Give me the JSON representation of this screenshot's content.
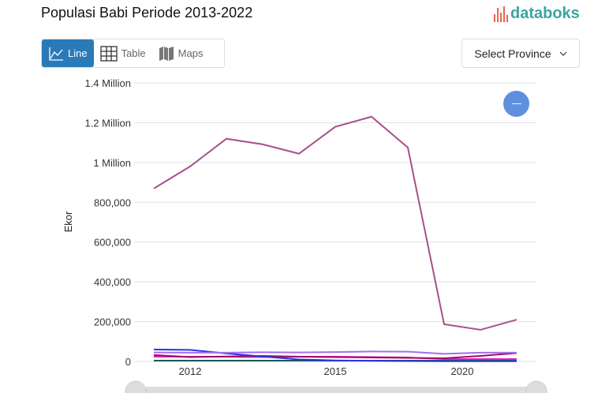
{
  "header": {
    "title": "Populasi Babi Periode 2013-2022",
    "logo": "databoks"
  },
  "tabs": [
    {
      "label": "Line",
      "icon": "line-chart-icon",
      "active": true
    },
    {
      "label": "Table",
      "icon": "table-icon"
    },
    {
      "label": "Maps",
      "icon": "map-icon"
    }
  ],
  "province_select": {
    "label": "Select Province"
  },
  "chart_data": {
    "type": "line",
    "title": "",
    "ylabel": "Ekor",
    "ylim": [
      0,
      1400000
    ],
    "yticks": [
      {
        "v": 0,
        "label": "0"
      },
      {
        "v": 200000,
        "label": "200,000"
      },
      {
        "v": 400000,
        "label": "400,000"
      },
      {
        "v": 600000,
        "label": "600,000"
      },
      {
        "v": 800000,
        "label": "800,000"
      },
      {
        "v": 1000000,
        "label": "1 Million"
      },
      {
        "v": 1200000,
        "label": "1.2 Million"
      },
      {
        "v": 1400000,
        "label": "1.4 Million"
      }
    ],
    "xticks": [
      {
        "v": 1,
        "label": "2012"
      },
      {
        "v": 5,
        "label": "2015"
      },
      {
        "v": 8.5,
        "label": "2020"
      }
    ],
    "grid": true,
    "series": [
      {
        "color": "#a8508a",
        "values": [
          869000,
          980000,
          1119000,
          1091000,
          1044000,
          1179000,
          1230000,
          1075000,
          187000,
          159000,
          210000
        ]
      },
      {
        "color": "#a070f0",
        "values": [
          45000,
          44000,
          44000,
          46000,
          45000,
          47000,
          50000,
          49000,
          38000,
          44000,
          44000
        ]
      },
      {
        "color": "#3030e8",
        "values": [
          60000,
          58000,
          40000,
          25000,
          10000,
          5000,
          3000,
          2000,
          1000,
          1000,
          1000
        ]
      },
      {
        "color": "#9a1060",
        "values": [
          32000,
          22000,
          25000,
          28000,
          24000,
          22000,
          20000,
          18000,
          16000,
          28000,
          42000
        ]
      },
      {
        "color": "#e020c0",
        "values": [
          24000,
          24000,
          24000,
          22000,
          24000,
          24000,
          22000,
          20000,
          12000,
          12000,
          12000
        ]
      },
      {
        "color": "#1a5a5a",
        "values": [
          4000,
          4000,
          4000,
          4000,
          4000,
          4000,
          4000,
          4000,
          4000,
          4000,
          4000
        ]
      }
    ]
  }
}
